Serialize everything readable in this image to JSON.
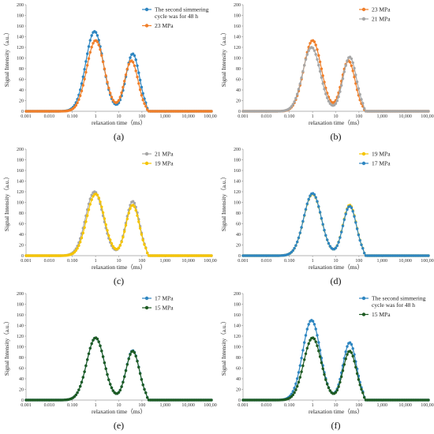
{
  "colors": {
    "blue": "#2e86c1",
    "orange": "#f07f2a",
    "gray": "#a6a6a6",
    "yellow": "#f5c400",
    "green": "#1e5b23",
    "axis": "#9a9a9a",
    "grid": "#e0e0e0"
  },
  "chart_data": [
    {
      "panel_label": "(a)",
      "type": "line",
      "marker": "circle",
      "x_scale": "log",
      "xlabel": "relaxation time（ms）",
      "ylabel": "Signal Intensity（a.u.）",
      "xlim": [
        0.001,
        100000
      ],
      "ylim": [
        0,
        200
      ],
      "x_ticks": [
        "0.001",
        "0.010",
        "0.100",
        "1",
        "10",
        "100",
        "1,000",
        "10,000",
        "100,000"
      ],
      "y_ticks": [
        "0",
        "20",
        "40",
        "60",
        "80",
        "100",
        "120",
        "140",
        "160",
        "180",
        "200"
      ],
      "legend_position": "top-right",
      "series": [
        {
          "name": "The second simmering cycle was for 48 h",
          "color_key": "blue",
          "peaks": [
            {
              "x": 0.9,
              "y": 150
            },
            {
              "x": 40,
              "y": 108
            }
          ],
          "valley": {
            "x": 7,
            "y": 45
          }
        },
        {
          "name": "23 MPa",
          "color_key": "orange",
          "peaks": [
            {
              "x": 1.0,
              "y": 133
            },
            {
              "x": 35,
              "y": 95
            }
          ],
          "valley": {
            "x": 8,
            "y": 57
          }
        }
      ]
    },
    {
      "panel_label": "(b)",
      "type": "line",
      "marker": "circle",
      "x_scale": "log",
      "xlabel": "relaxation time（ms）",
      "ylabel": "Signal Intensity（a.u.）",
      "xlim": [
        0.001,
        100000
      ],
      "ylim": [
        0,
        200
      ],
      "x_ticks": [
        "0.001",
        "0.010",
        "0.100",
        "1",
        "10",
        "100",
        "1,000",
        "10,000",
        "100,000"
      ],
      "y_ticks": [
        "0",
        "20",
        "40",
        "60",
        "80",
        "100",
        "120",
        "140",
        "160",
        "180",
        "200"
      ],
      "legend_position": "top-right",
      "series": [
        {
          "name": "23 MPa",
          "color_key": "orange",
          "peaks": [
            {
              "x": 1.0,
              "y": 133
            },
            {
              "x": 35,
              "y": 95
            }
          ],
          "valley": {
            "x": 8,
            "y": 57
          }
        },
        {
          "name": "21 MPa",
          "color_key": "gray",
          "peaks": [
            {
              "x": 0.9,
              "y": 120
            },
            {
              "x": 40,
              "y": 102
            }
          ],
          "valley": {
            "x": 7,
            "y": 60
          }
        }
      ]
    },
    {
      "panel_label": "(c)",
      "type": "line",
      "marker": "circle",
      "x_scale": "log",
      "xlabel": "relaxation time（ms）",
      "ylabel": "Signal Intensity（a.u.）",
      "xlim": [
        0.001,
        100000
      ],
      "ylim": [
        0,
        200
      ],
      "x_ticks": [
        "0.001",
        "0.010",
        "0.100",
        "1",
        "10",
        "100",
        "1,000",
        "10,000",
        "100,000"
      ],
      "y_ticks": [
        "0",
        "20",
        "40",
        "60",
        "80",
        "100",
        "120",
        "140",
        "160",
        "180",
        "200"
      ],
      "legend_position": "top-right",
      "series": [
        {
          "name": "21 MPa",
          "color_key": "gray",
          "peaks": [
            {
              "x": 0.9,
              "y": 120
            },
            {
              "x": 40,
              "y": 102
            }
          ],
          "valley": {
            "x": 7,
            "y": 60
          }
        },
        {
          "name": "19 MPa",
          "color_key": "yellow",
          "peaks": [
            {
              "x": 1.0,
              "y": 116
            },
            {
              "x": 40,
              "y": 95
            }
          ],
          "valley": {
            "x": 8,
            "y": 57
          }
        }
      ]
    },
    {
      "panel_label": "(d)",
      "type": "line",
      "marker": "circle",
      "x_scale": "log",
      "xlabel": "relaxation time（ms）",
      "ylabel": "Signal Intensity（a.u.）",
      "xlim": [
        0.001,
        100000
      ],
      "ylim": [
        0,
        200
      ],
      "x_ticks": [
        "0.001",
        "0.010",
        "0.100",
        "1",
        "10",
        "100",
        "1,000",
        "10,000",
        "100,000"
      ],
      "y_ticks": [
        "0",
        "20",
        "40",
        "60",
        "80",
        "100",
        "120",
        "140",
        "160",
        "180",
        "200"
      ],
      "legend_position": "top-right",
      "series": [
        {
          "name": "19 MPa",
          "color_key": "yellow",
          "peaks": [
            {
              "x": 1.0,
              "y": 116
            },
            {
              "x": 40,
              "y": 95
            }
          ],
          "valley": {
            "x": 8,
            "y": 57
          }
        },
        {
          "name": "17 MPa",
          "color_key": "blue",
          "peaks": [
            {
              "x": 1.0,
              "y": 117
            },
            {
              "x": 40,
              "y": 93
            }
          ],
          "valley": {
            "x": 8,
            "y": 53
          }
        }
      ]
    },
    {
      "panel_label": "(e)",
      "type": "line",
      "marker": "circle",
      "x_scale": "log",
      "xlabel": "relaxation time（ms）",
      "ylabel": "Signal Intensity（a.u.）",
      "xlim": [
        0.001,
        100000
      ],
      "ylim": [
        0,
        200
      ],
      "x_ticks": [
        "0.001",
        "0.010",
        "0.100",
        "1",
        "10",
        "100",
        "1,000",
        "10,000",
        "100,000"
      ],
      "y_ticks": [
        "0",
        "20",
        "40",
        "60",
        "80",
        "100",
        "120",
        "140",
        "160",
        "180",
        "200"
      ],
      "legend_position": "top-right",
      "series": [
        {
          "name": "17 MPa",
          "color_key": "blue",
          "peaks": [
            {
              "x": 1.0,
              "y": 117
            },
            {
              "x": 40,
              "y": 93
            }
          ],
          "valley": {
            "x": 8,
            "y": 53
          }
        },
        {
          "name": "15 MPa",
          "color_key": "green",
          "peaks": [
            {
              "x": 1.0,
              "y": 117
            },
            {
              "x": 40,
              "y": 92
            }
          ],
          "valley": {
            "x": 8,
            "y": 53
          }
        }
      ]
    },
    {
      "panel_label": "(f)",
      "type": "line",
      "marker": "circle",
      "x_scale": "log",
      "xlabel": "relaxation time（ms）",
      "ylabel": "Signal Intensity（a.u.）",
      "xlim": [
        0.001,
        100000
      ],
      "ylim": [
        0,
        200
      ],
      "x_ticks": [
        "0.001",
        "0.010",
        "0.100",
        "1",
        "10",
        "100",
        "1,000",
        "10,000",
        "100,000"
      ],
      "y_ticks": [
        "0",
        "20",
        "40",
        "60",
        "80",
        "100",
        "120",
        "140",
        "160",
        "180",
        "200"
      ],
      "legend_position": "top-right",
      "series": [
        {
          "name": "The second simmering cycle was for 48 h",
          "color_key": "blue",
          "peaks": [
            {
              "x": 0.9,
              "y": 150
            },
            {
              "x": 40,
              "y": 108
            }
          ],
          "valley": {
            "x": 7,
            "y": 45
          }
        },
        {
          "name": "15 MPa",
          "color_key": "green",
          "peaks": [
            {
              "x": 1.0,
              "y": 117
            },
            {
              "x": 40,
              "y": 92
            }
          ],
          "valley": {
            "x": 8,
            "y": 53
          }
        }
      ]
    }
  ]
}
